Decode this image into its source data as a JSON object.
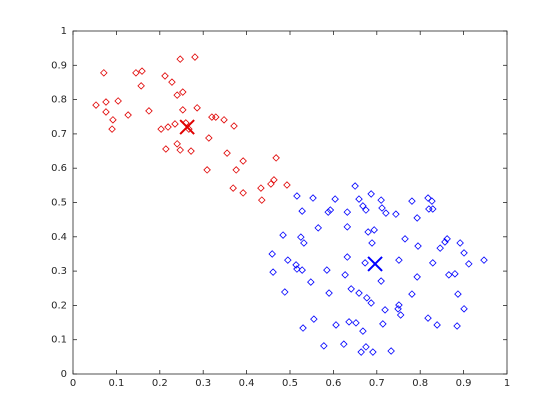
{
  "chart_data": {
    "type": "scatter",
    "xlim": [
      0,
      1
    ],
    "ylim": [
      0,
      1
    ],
    "xticks": [
      0,
      0.1,
      0.2,
      0.3,
      0.4,
      0.5,
      0.6,
      0.7,
      0.8,
      0.9,
      1
    ],
    "yticks": [
      0,
      0.1,
      0.2,
      0.3,
      0.4,
      0.5,
      0.6,
      0.7,
      0.8,
      0.9,
      1
    ],
    "series": [
      {
        "color": "#e00000",
        "marker": "diamond",
        "x": [
          0.071,
          0.145,
          0.159,
          0.247,
          0.281,
          0.212,
          0.228,
          0.157,
          0.24,
          0.253,
          0.053,
          0.076,
          0.104,
          0.076,
          0.286,
          0.253,
          0.175,
          0.127,
          0.092,
          0.09,
          0.329,
          0.32,
          0.348,
          0.371,
          0.203,
          0.219,
          0.235,
          0.26,
          0.267,
          0.313,
          0.214,
          0.24,
          0.247,
          0.272,
          0.355,
          0.392,
          0.468,
          0.309,
          0.376,
          0.463,
          0.456,
          0.493,
          0.369,
          0.392,
          0.433,
          0.435
        ],
        "y": [
          0.878,
          0.878,
          0.883,
          0.918,
          0.924,
          0.869,
          0.851,
          0.84,
          0.813,
          0.822,
          0.784,
          0.793,
          0.796,
          0.764,
          0.776,
          0.77,
          0.767,
          0.755,
          0.741,
          0.714,
          0.749,
          0.749,
          0.741,
          0.723,
          0.714,
          0.72,
          0.729,
          0.732,
          0.714,
          0.688,
          0.656,
          0.671,
          0.653,
          0.65,
          0.644,
          0.621,
          0.63,
          0.595,
          0.595,
          0.566,
          0.554,
          0.551,
          0.542,
          0.528,
          0.542,
          0.507
        ]
      },
      {
        "color": "#0000ff",
        "marker": "diamond",
        "x": [
          0.65,
          0.516,
          0.553,
          0.604,
          0.659,
          0.687,
          0.71,
          0.668,
          0.675,
          0.712,
          0.721,
          0.744,
          0.781,
          0.818,
          0.827,
          0.829,
          0.82,
          0.793,
          0.528,
          0.588,
          0.593,
          0.632,
          0.565,
          0.68,
          0.694,
          0.632,
          0.484,
          0.525,
          0.532,
          0.689,
          0.765,
          0.862,
          0.857,
          0.892,
          0.795,
          0.846,
          0.459,
          0.495,
          0.514,
          0.516,
          0.528,
          0.901,
          0.912,
          0.947,
          0.829,
          0.751,
          0.632,
          0.673,
          0.461,
          0.585,
          0.627,
          0.71,
          0.793,
          0.866,
          0.88,
          0.548,
          0.641,
          0.659,
          0.781,
          0.488,
          0.59,
          0.887,
          0.687,
          0.751,
          0.719,
          0.749,
          0.755,
          0.677,
          0.901,
          0.555,
          0.606,
          0.636,
          0.652,
          0.714,
          0.818,
          0.839,
          0.885,
          0.53,
          0.668,
          0.578,
          0.624,
          0.675,
          0.664,
          0.691,
          0.733
        ],
        "y": [
          0.548,
          0.519,
          0.513,
          0.51,
          0.51,
          0.525,
          0.507,
          0.49,
          0.478,
          0.484,
          0.469,
          0.466,
          0.504,
          0.513,
          0.504,
          0.481,
          0.481,
          0.455,
          0.475,
          0.472,
          0.478,
          0.472,
          0.426,
          0.414,
          0.42,
          0.429,
          0.405,
          0.399,
          0.382,
          0.382,
          0.394,
          0.394,
          0.385,
          0.382,
          0.373,
          0.367,
          0.35,
          0.332,
          0.318,
          0.306,
          0.303,
          0.353,
          0.321,
          0.332,
          0.324,
          0.332,
          0.341,
          0.324,
          0.297,
          0.303,
          0.289,
          0.271,
          0.283,
          0.289,
          0.292,
          0.268,
          0.248,
          0.236,
          0.233,
          0.239,
          0.236,
          0.233,
          0.207,
          0.201,
          0.187,
          0.19,
          0.172,
          0.222,
          0.19,
          0.16,
          0.143,
          0.152,
          0.149,
          0.146,
          0.163,
          0.143,
          0.14,
          0.134,
          0.125,
          0.082,
          0.087,
          0.079,
          0.064,
          0.064,
          0.067
        ]
      },
      {
        "color": "#e00000",
        "marker": "x",
        "x": [
          0.263
        ],
        "y": [
          0.72
        ]
      },
      {
        "color": "#0000ff",
        "marker": "x",
        "x": [
          0.696
        ],
        "y": [
          0.321
        ]
      }
    ]
  }
}
